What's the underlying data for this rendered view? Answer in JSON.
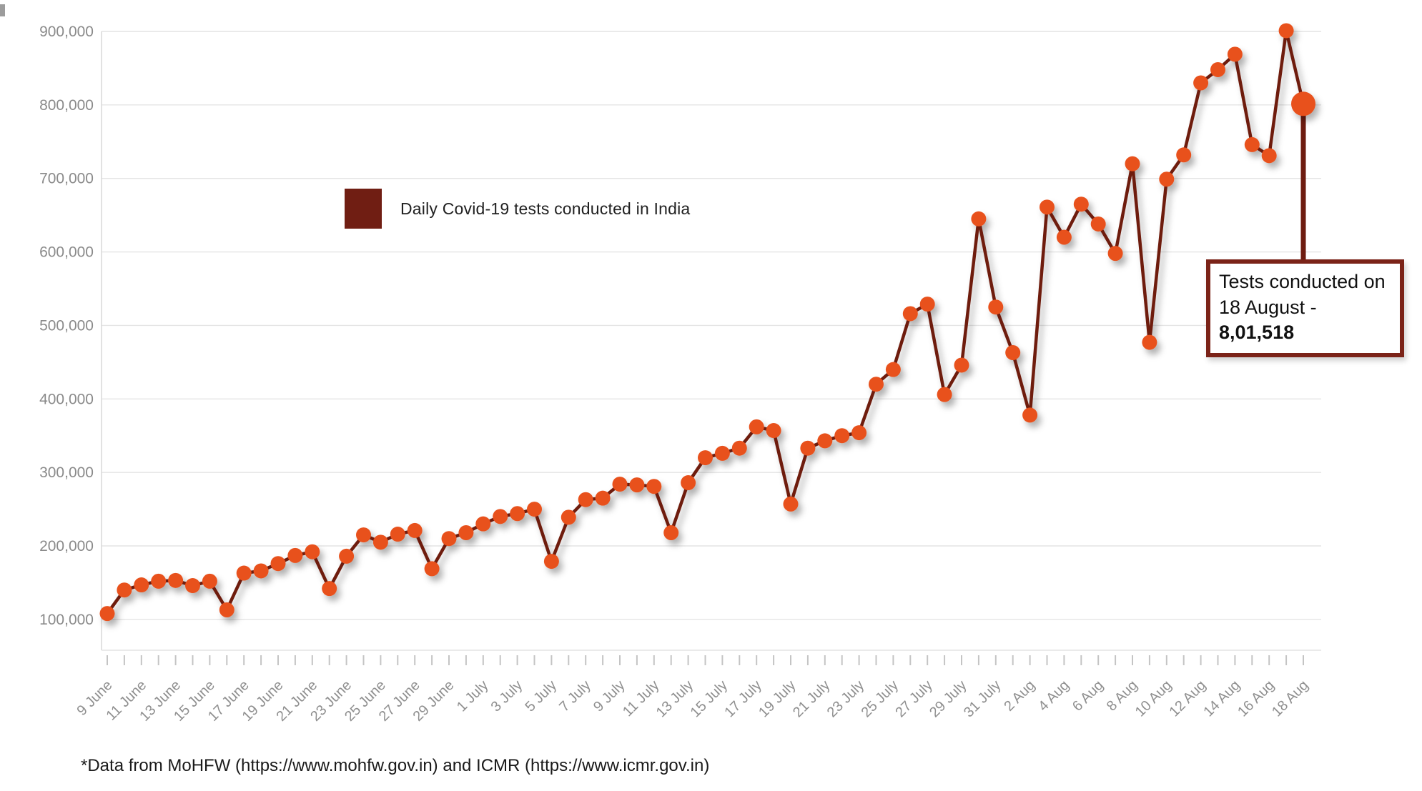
{
  "legend": {
    "label": "Daily Covid-19 tests conducted in India"
  },
  "annotation": {
    "line1": "Tests conducted on",
    "line2_prefix": "18 August - ",
    "line2_value": "8,01,518"
  },
  "footer": {
    "source_note": "*Data from MoHFW (https://www.mohfw.gov.in) and ICMR (https://www.icmr.gov.in)"
  },
  "colors": {
    "point": "#E8511C",
    "line": "#6E1C10",
    "legend_swatch": "#701E13",
    "grid": "#E4E4E4",
    "axis_line": "#D6D6D6",
    "tick": "#C4C4C4",
    "axis_text": "#8F8F8F",
    "annotation_border": "#7B2318"
  },
  "chart_data": {
    "type": "line",
    "title": "",
    "series_name": "Daily Covid-19 tests conducted in India",
    "xlabel": "",
    "ylabel": "",
    "grid": "horizontal",
    "legend_position": "top-left-inside",
    "ylim": [
      100000,
      900000
    ],
    "x_label_every": 2,
    "y_ticks": [
      [
        100000,
        "100,000"
      ],
      [
        200000,
        "200,000"
      ],
      [
        300000,
        "300,000"
      ],
      [
        400000,
        "400,000"
      ],
      [
        500000,
        "500,000"
      ],
      [
        600000,
        "600,000"
      ],
      [
        700000,
        "700,000"
      ],
      [
        800000,
        "800,000"
      ],
      [
        900000,
        "900,000"
      ]
    ],
    "x": [
      "9 June",
      "10 June",
      "11 June",
      "12 June",
      "13 June",
      "14 June",
      "15 June",
      "16 June",
      "17 June",
      "18 June",
      "19 June",
      "20 June",
      "21 June",
      "22 June",
      "23 June",
      "24 June",
      "25 June",
      "26 June",
      "27 June",
      "28 June",
      "29 June",
      "30 June",
      "1 July",
      "2 July",
      "3 July",
      "4 July",
      "5 July",
      "6 July",
      "7 July",
      "8 July",
      "9 July",
      "10 July",
      "11 July",
      "12 July",
      "13 July",
      "14 July",
      "15 July",
      "16 July",
      "17 July",
      "18 July",
      "19 July",
      "20 July",
      "21 July",
      "22 July",
      "23 July",
      "24 July",
      "25 July",
      "26 July",
      "27 July",
      "28 July",
      "29 July",
      "30 July",
      "31 July",
      "1 Aug",
      "2 Aug",
      "3 Aug",
      "4 Aug",
      "5 Aug",
      "6 Aug",
      "7 Aug",
      "8 Aug",
      "9 Aug",
      "10 Aug",
      "11 Aug",
      "12 Aug",
      "13 Aug",
      "14 Aug",
      "15 Aug",
      "16 Aug",
      "17 Aug",
      "18 Aug"
    ],
    "values": [
      108000,
      140000,
      147000,
      152000,
      153000,
      146000,
      152000,
      113000,
      163000,
      166000,
      176000,
      187000,
      192000,
      142000,
      186000,
      215000,
      205000,
      216000,
      221000,
      169000,
      210000,
      218000,
      230000,
      240000,
      244000,
      250000,
      179000,
      239000,
      263000,
      265000,
      284000,
      283000,
      281000,
      218000,
      286000,
      320000,
      326000,
      333000,
      362000,
      357000,
      257000,
      333000,
      343000,
      350000,
      354000,
      420000,
      440000,
      516000,
      529000,
      406000,
      446000,
      645000,
      525000,
      463000,
      378000,
      661000,
      620000,
      665000,
      638000,
      598000,
      720000,
      477000,
      699000,
      732000,
      830000,
      848000,
      869000,
      746000,
      731000,
      901000,
      801518
    ],
    "highlight": {
      "index": 70,
      "x": "18 Aug",
      "value": 801518,
      "value_display": "8,01,518"
    }
  }
}
